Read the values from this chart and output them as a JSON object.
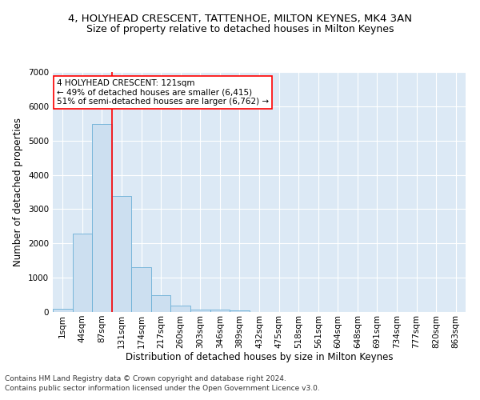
{
  "title": "4, HOLYHEAD CRESCENT, TATTENHOE, MILTON KEYNES, MK4 3AN",
  "subtitle": "Size of property relative to detached houses in Milton Keynes",
  "xlabel": "Distribution of detached houses by size in Milton Keynes",
  "ylabel": "Number of detached properties",
  "footnote1": "Contains HM Land Registry data © Crown copyright and database right 2024.",
  "footnote2": "Contains public sector information licensed under the Open Government Licence v3.0.",
  "bin_labels": [
    "1sqm",
    "44sqm",
    "87sqm",
    "131sqm",
    "174sqm",
    "217sqm",
    "260sqm",
    "303sqm",
    "346sqm",
    "389sqm",
    "432sqm",
    "475sqm",
    "518sqm",
    "561sqm",
    "604sqm",
    "648sqm",
    "691sqm",
    "734sqm",
    "777sqm",
    "820sqm",
    "863sqm"
  ],
  "bar_values": [
    100,
    2280,
    5480,
    3380,
    1310,
    500,
    180,
    80,
    60,
    50,
    0,
    0,
    0,
    0,
    0,
    0,
    0,
    0,
    0,
    0,
    0
  ],
  "bar_color": "#ccdff0",
  "bar_edge_color": "#6aafd6",
  "vline_color": "red",
  "vline_x_index": 2.5,
  "annotation_text": "4 HOLYHEAD CRESCENT: 121sqm\n← 49% of detached houses are smaller (6,415)\n51% of semi-detached houses are larger (6,762) →",
  "annotation_box_color": "white",
  "annotation_box_edge": "red",
  "ylim": [
    0,
    7000
  ],
  "bg_color": "#dce9f5",
  "grid_color": "white",
  "title_fontsize": 9.5,
  "subtitle_fontsize": 9,
  "axis_label_fontsize": 8.5,
  "tick_fontsize": 7.5,
  "annot_fontsize": 7.5,
  "footnote_fontsize": 6.5
}
